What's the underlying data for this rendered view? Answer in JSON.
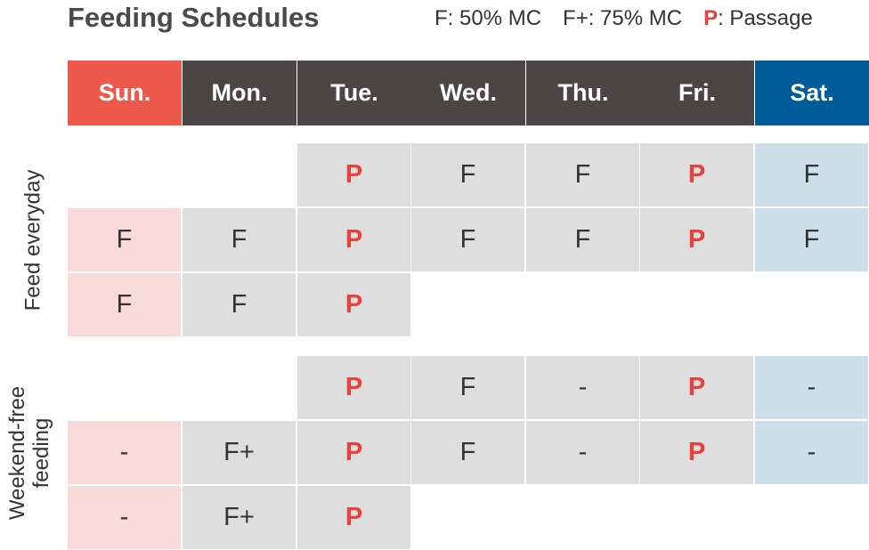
{
  "title": "Feeding Schedules",
  "legend": {
    "f": "F: 50% MC",
    "fplus": "F+: 75% MC",
    "p_key": "P",
    "p_text": ": Passage"
  },
  "colors": {
    "sunday_header": "#ed5a4b",
    "weekday_header": "#4b4646",
    "saturday_header": "#005c99",
    "passage": "#e8413c",
    "sunday_cell": "#f8dbd9",
    "weekday_cell": "#dedede",
    "saturday_cell": "#ccdfeb"
  },
  "days": [
    "Sun.",
    "Mon.",
    "Tue.",
    "Wed.",
    "Thu.",
    "Fri.",
    "Sat."
  ],
  "groups": [
    {
      "label": "Feed everyday",
      "rows": [
        [
          "",
          "",
          "P",
          "F",
          "F",
          "P",
          "F"
        ],
        [
          "F",
          "F",
          "P",
          "F",
          "F",
          "P",
          "F"
        ],
        [
          "F",
          "F",
          "P",
          "",
          "",
          "",
          ""
        ]
      ]
    },
    {
      "label": "Weekend-free feeding",
      "label_lines": [
        "Weekend-free",
        "feeding"
      ],
      "rows": [
        [
          "",
          "",
          "P",
          "F",
          "-",
          "P",
          "-"
        ],
        [
          "-",
          "F+",
          "P",
          "F",
          "-",
          "P",
          "-"
        ],
        [
          "-",
          "F+",
          "P",
          "",
          "",
          "",
          ""
        ]
      ]
    }
  ]
}
